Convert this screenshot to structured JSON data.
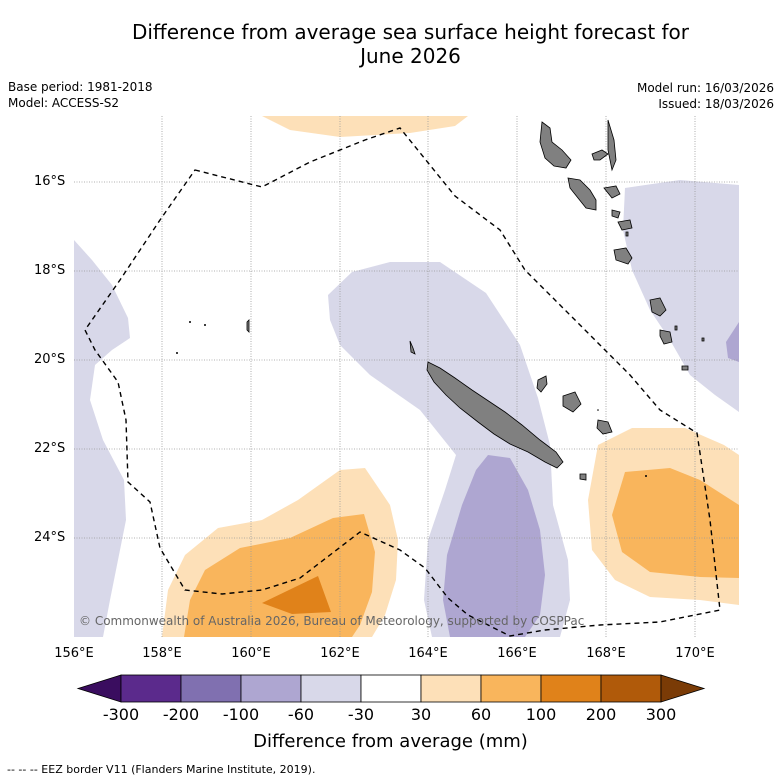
{
  "title_line1": "Difference from average sea surface height forecast for",
  "title_line2": "June 2026",
  "base_period": "Base period: 1981-2018",
  "model": "Model: ACCESS-S2",
  "model_run": "Model run: 16/03/2026",
  "issued": "Issued: 18/03/2026",
  "lat_labels": [
    "16°S",
    "18°S",
    "20°S",
    "22°S",
    "24°S"
  ],
  "lon_labels": [
    "156°E",
    "158°E",
    "160°E",
    "162°E",
    "164°E",
    "166°E",
    "168°E",
    "170°E"
  ],
  "copyright": "© Commonwealth of Australia 2026, Bureau of Meteorology, supported by COSPPac",
  "colorbar": {
    "title": "Difference from average (mm)",
    "tick_labels": [
      "-300",
      "-200",
      "-100",
      "-60",
      "-30",
      "30",
      "60",
      "100",
      "200",
      "300"
    ],
    "colors": [
      "#3a0d5f",
      "#5b2a8c",
      "#8070b0",
      "#aea6d1",
      "#d8d8e9",
      "#ffffff",
      "#fde0b8",
      "#f9b55c",
      "#e0821a",
      "#b05a0a",
      "#7a3b06"
    ]
  },
  "footnote": "--  --  -- EEZ border V11 (Flanders Marine Institute, 2019).",
  "colors": {
    "land": "#808080",
    "eez_line": "#000000",
    "grid": "#999999"
  }
}
